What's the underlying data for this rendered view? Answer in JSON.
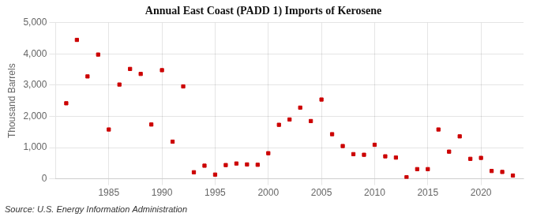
{
  "chart_data": {
    "type": "scatter",
    "title": "Annual East Coast (PADD 1) Imports of Kerosene",
    "ylabel": "Thousand Barrels",
    "annotations": [
      "Source: U.S. Energy Information Administration"
    ],
    "x": [
      1981,
      1982,
      1983,
      1984,
      1985,
      1986,
      1987,
      1988,
      1989,
      1990,
      1991,
      1992,
      1993,
      1994,
      1995,
      1996,
      1997,
      1998,
      1999,
      2000,
      2001,
      2002,
      2003,
      2004,
      2005,
      2006,
      2007,
      2008,
      2009,
      2010,
      2011,
      2012,
      2013,
      2014,
      2015,
      2016,
      2017,
      2018,
      2019,
      2020,
      2021,
      2022,
      2023
    ],
    "values": [
      2420,
      4450,
      3280,
      3980,
      1580,
      3020,
      3520,
      3360,
      1740,
      3480,
      1190,
      2960,
      210,
      420,
      135,
      440,
      490,
      460,
      450,
      820,
      1730,
      1900,
      2280,
      1850,
      2540,
      1430,
      1050,
      790,
      770,
      1090,
      720,
      680,
      50,
      310,
      310,
      1580,
      870,
      1360,
      640,
      670,
      250,
      220,
      105
    ],
    "color": "#cc0000",
    "marker": "square",
    "xlim": [
      1980,
      2024
    ],
    "xticks": [
      1985,
      1990,
      1995,
      2000,
      2005,
      2010,
      2015,
      2020
    ],
    "ylim": [
      0,
      5000
    ],
    "yticks": [
      0,
      {
        "value": 1000,
        "label": "1,000"
      },
      {
        "value": 2000,
        "label": "2,000"
      },
      {
        "value": 3000,
        "label": "3,000"
      },
      {
        "value": 4000,
        "label": "4,000"
      },
      {
        "value": 5000,
        "label": "5,000"
      }
    ],
    "grid": true
  }
}
